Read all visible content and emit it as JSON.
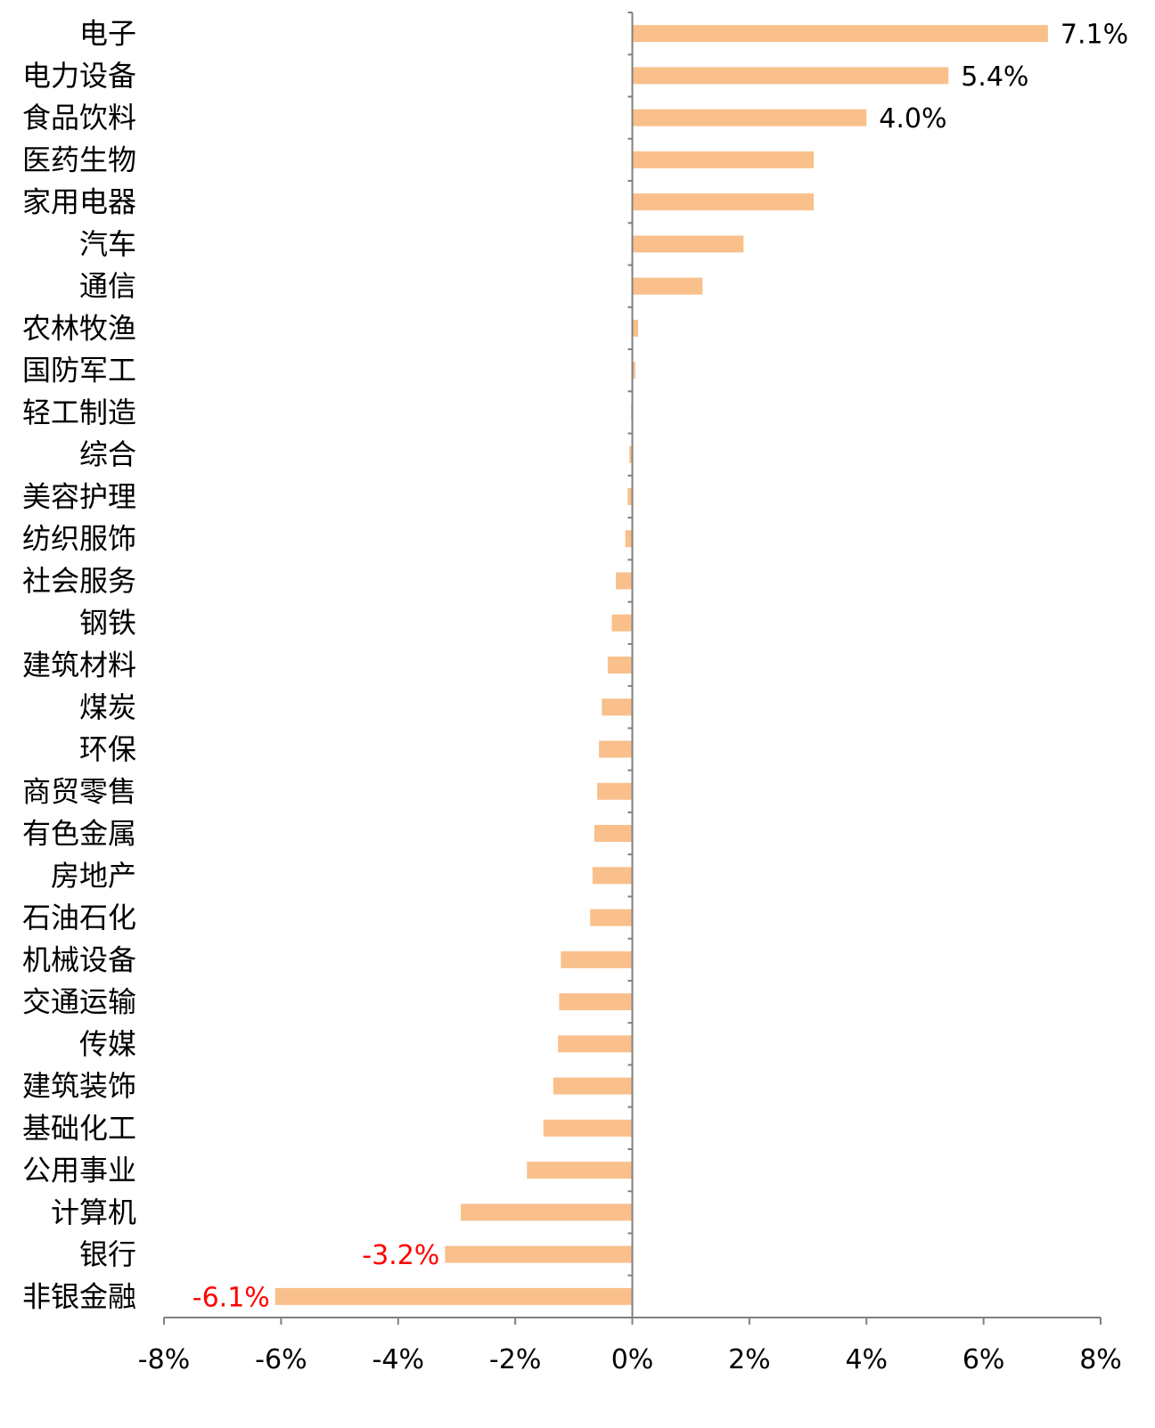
{
  "chart_data": {
    "type": "bar",
    "orientation": "horizontal",
    "title": "",
    "xlabel": "",
    "ylabel": "",
    "xlim": [
      -8,
      8
    ],
    "x_ticks": [
      -8,
      -6,
      -4,
      -2,
      0,
      2,
      4,
      6,
      8
    ],
    "x_tick_labels": [
      "-8%",
      "-6%",
      "-4%",
      "-2%",
      "0%",
      "2%",
      "4%",
      "6%",
      "8%"
    ],
    "grid": false,
    "legend": "none",
    "bar_color": "#F9C08C",
    "label_color_positive": "#000000",
    "label_color_negative": "#FF0000",
    "categories": [
      "电子",
      "电力设备",
      "食品饮料",
      "医药生物",
      "家用电器",
      "汽车",
      "通信",
      "农林牧渔",
      "国防军工",
      "轻工制造",
      "综合",
      "美容护理",
      "纺织服饰",
      "社会服务",
      "钢铁",
      "建筑材料",
      "煤炭",
      "环保",
      "商贸零售",
      "有色金属",
      "房地产",
      "石油石化",
      "机械设备",
      "交通运输",
      "传媒",
      "建筑装饰",
      "基础化工",
      "公用事业",
      "计算机",
      "银行",
      "非银金融"
    ],
    "values": [
      7.1,
      5.4,
      4.0,
      3.1,
      3.1,
      1.9,
      1.2,
      0.1,
      0.05,
      -0.02,
      -0.05,
      -0.08,
      -0.12,
      -0.28,
      -0.35,
      -0.42,
      -0.52,
      -0.57,
      -0.6,
      -0.65,
      -0.68,
      -0.72,
      -1.22,
      -1.25,
      -1.27,
      -1.35,
      -1.52,
      -1.8,
      -2.93,
      -3.2,
      -6.1
    ],
    "data_labels": [
      {
        "category": "电子",
        "text": "7.1%"
      },
      {
        "category": "电力设备",
        "text": "5.4%"
      },
      {
        "category": "食品饮料",
        "text": "4.0%"
      },
      {
        "category": "银行",
        "text": "-3.2%"
      },
      {
        "category": "非银金融",
        "text": "-6.1%"
      }
    ]
  }
}
